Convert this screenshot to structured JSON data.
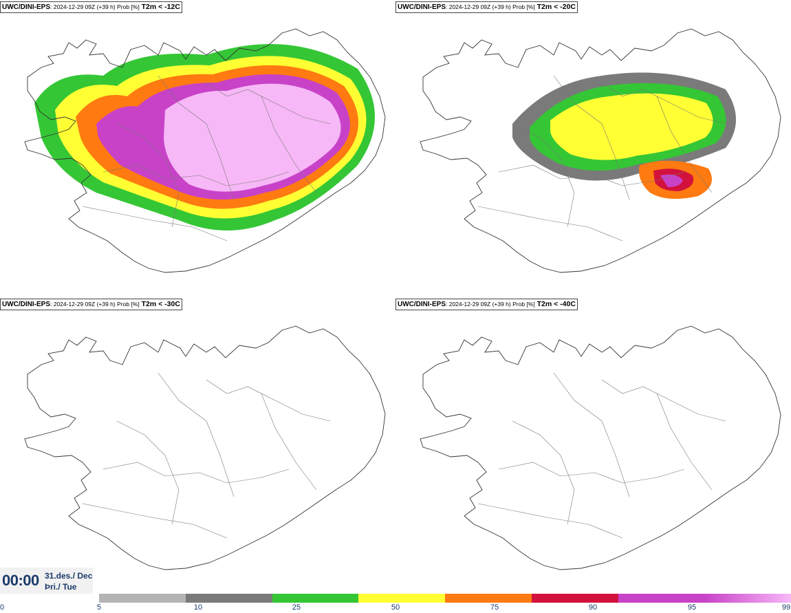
{
  "panels": [
    {
      "model": "UWC/DINI-EPS",
      "meta": ": 2024-12-29 09Z (+39 h) Prob [%]",
      "threshold": "T2m < -12C",
      "intensity": 4
    },
    {
      "model": "UWC/DINI-EPS",
      "meta": ": 2024-12-29 09Z (+39 h) Prob [%]",
      "threshold": "T2m < -20C",
      "intensity": 2
    },
    {
      "model": "UWC/DINI-EPS",
      "meta": ": 2024-12-29 09Z (+39 h) Prob [%]",
      "threshold": "T2m < -30C",
      "intensity": 0
    },
    {
      "model": "UWC/DINI-EPS",
      "meta": ": 2024-12-29 09Z (+39 h) Prob [%]",
      "threshold": "T2m < -40C",
      "intensity": 0
    }
  ],
  "valid_time": {
    "time": "00:00",
    "date_line1": "31.des./ Dec",
    "date_line2": "Þri./ Tue"
  },
  "colorbar": {
    "ticks": [
      "0",
      "5",
      "10",
      "25",
      "50",
      "75",
      "90",
      "95",
      "99"
    ],
    "colors": [
      "#b4b4b4",
      "#7a7a7a",
      "#35c635",
      "#ffff33",
      "#ff7a10",
      "#d2123c",
      "#c842c8",
      "#f7b8f7"
    ]
  }
}
